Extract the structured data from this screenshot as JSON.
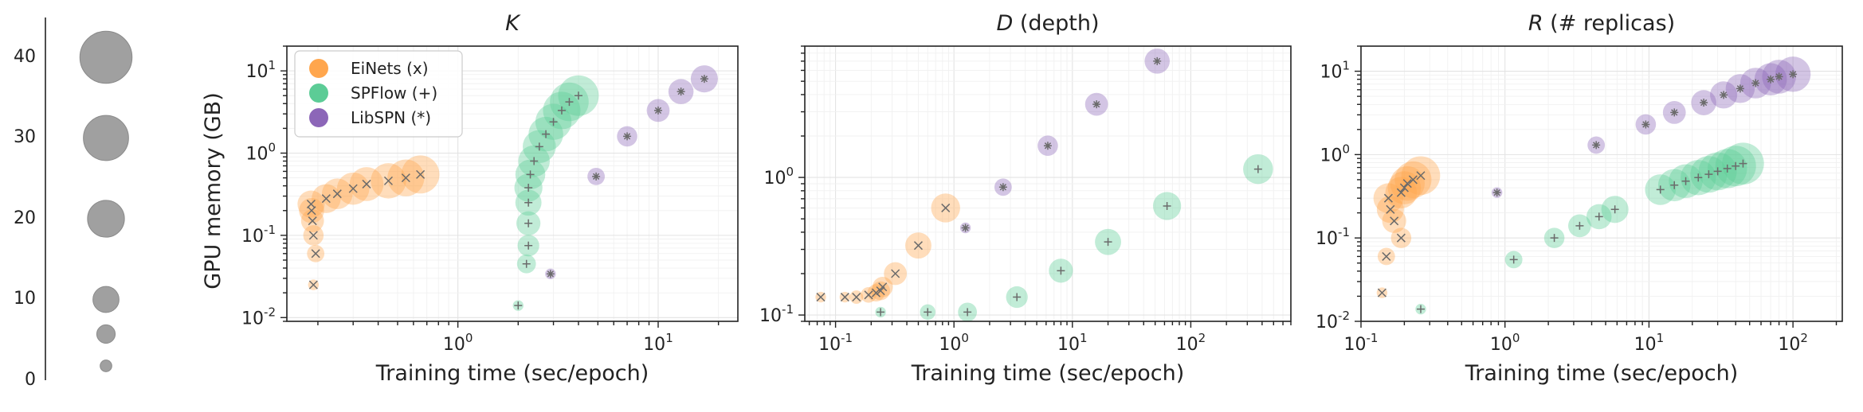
{
  "colors": {
    "EiNets": "#ffa64d",
    "SPFlow": "#5ccc96",
    "LibSPN": "#8c66b8",
    "size_legend": "#a0a0a0",
    "marker": "#666666"
  },
  "size_legend": {
    "ticks": [
      "0",
      "10",
      "20",
      "30",
      "40"
    ],
    "values": [
      2,
      5,
      10,
      20,
      30,
      40
    ]
  },
  "legend": [
    {
      "name": "EiNets (x)",
      "color": "#ffa64d",
      "marker": "x"
    },
    {
      "name": "SPFlow (+)",
      "color": "#5ccc96",
      "marker": "+"
    },
    {
      "name": "LibSPN (*)",
      "color": "#8c66b8",
      "marker": "*"
    }
  ],
  "chart_data": [
    {
      "type": "scatter",
      "title_var": "K",
      "title_rest": "",
      "xlabel": "Training time (sec/epoch)",
      "ylabel": "GPU memory (GB)",
      "xscale": "log",
      "yscale": "log",
      "xlim": [
        0.14,
        25
      ],
      "ylim": [
        0.009,
        20
      ],
      "xticks": [
        {
          "v": 1,
          "b": "10",
          "e": "0"
        },
        {
          "v": 10,
          "b": "10",
          "e": "1"
        }
      ],
      "yticks": [
        {
          "v": 0.01,
          "b": "10",
          "e": "-2"
        },
        {
          "v": 0.1,
          "b": "10",
          "e": "-1"
        },
        {
          "v": 1,
          "b": "10",
          "e": "0"
        },
        {
          "v": 10,
          "b": "10",
          "e": "1"
        }
      ],
      "grid": true,
      "legend_position": "top-left",
      "series": [
        {
          "name": "EiNets (x)",
          "marker": "x",
          "points": [
            {
              "x": 0.19,
              "y": 0.025,
              "s": 1
            },
            {
              "x": 0.195,
              "y": 0.06,
              "s": 4
            },
            {
              "x": 0.19,
              "y": 0.1,
              "s": 6
            },
            {
              "x": 0.188,
              "y": 0.15,
              "s": 8
            },
            {
              "x": 0.186,
              "y": 0.2,
              "s": 10
            },
            {
              "x": 0.185,
              "y": 0.24,
              "s": 12
            },
            {
              "x": 0.22,
              "y": 0.28,
              "s": 14
            },
            {
              "x": 0.25,
              "y": 0.32,
              "s": 16
            },
            {
              "x": 0.3,
              "y": 0.37,
              "s": 18
            },
            {
              "x": 0.35,
              "y": 0.42,
              "s": 20
            },
            {
              "x": 0.45,
              "y": 0.46,
              "s": 22
            },
            {
              "x": 0.55,
              "y": 0.5,
              "s": 24
            },
            {
              "x": 0.65,
              "y": 0.55,
              "s": 26
            }
          ]
        },
        {
          "name": "SPFlow (+)",
          "marker": "+",
          "points": [
            {
              "x": 2.0,
              "y": 0.014,
              "s": 1
            },
            {
              "x": 2.2,
              "y": 0.045,
              "s": 5
            },
            {
              "x": 2.25,
              "y": 0.075,
              "s": 7
            },
            {
              "x": 2.25,
              "y": 0.14,
              "s": 9
            },
            {
              "x": 2.25,
              "y": 0.25,
              "s": 11
            },
            {
              "x": 2.25,
              "y": 0.38,
              "s": 13
            },
            {
              "x": 2.3,
              "y": 0.55,
              "s": 15
            },
            {
              "x": 2.4,
              "y": 0.8,
              "s": 17
            },
            {
              "x": 2.55,
              "y": 1.2,
              "s": 19
            },
            {
              "x": 2.75,
              "y": 1.7,
              "s": 21
            },
            {
              "x": 3.0,
              "y": 2.4,
              "s": 23
            },
            {
              "x": 3.3,
              "y": 3.3,
              "s": 25
            },
            {
              "x": 3.6,
              "y": 4.2,
              "s": 27
            },
            {
              "x": 4.0,
              "y": 5.0,
              "s": 30
            }
          ]
        },
        {
          "name": "LibSPN (*)",
          "marker": "*",
          "points": [
            {
              "x": 2.9,
              "y": 0.034,
              "s": 1
            },
            {
              "x": 4.9,
              "y": 0.52,
              "s": 4
            },
            {
              "x": 7.0,
              "y": 1.6,
              "s": 6
            },
            {
              "x": 10.0,
              "y": 3.3,
              "s": 8
            },
            {
              "x": 13.0,
              "y": 5.6,
              "s": 10
            },
            {
              "x": 17.0,
              "y": 8.0,
              "s": 12
            }
          ]
        }
      ]
    },
    {
      "type": "scatter",
      "title_var": "D",
      "title_rest": " (depth)",
      "xlabel": "Training time (sec/epoch)",
      "ylabel": "",
      "xscale": "log",
      "yscale": "log",
      "xlim": [
        0.055,
        700
      ],
      "ylim": [
        0.09,
        9.0
      ],
      "xticks": [
        {
          "v": 0.1,
          "b": "10",
          "e": "-1"
        },
        {
          "v": 1,
          "b": "10",
          "e": "0"
        },
        {
          "v": 10,
          "b": "10",
          "e": "1"
        },
        {
          "v": 100,
          "b": "10",
          "e": "2"
        }
      ],
      "yticks": [
        {
          "v": 0.1,
          "b": "10",
          "e": "-1"
        },
        {
          "v": 1,
          "b": "10",
          "e": "0"
        }
      ],
      "grid": true,
      "series": [
        {
          "name": "EiNets (x)",
          "marker": "x",
          "points": [
            {
              "x": 0.075,
              "y": 0.135,
              "s": 1
            },
            {
              "x": 0.12,
              "y": 0.135,
              "s": 1
            },
            {
              "x": 0.15,
              "y": 0.135,
              "s": 2
            },
            {
              "x": 0.19,
              "y": 0.14,
              "s": 3
            },
            {
              "x": 0.22,
              "y": 0.145,
              "s": 4
            },
            {
              "x": 0.24,
              "y": 0.15,
              "s": 5
            },
            {
              "x": 0.25,
              "y": 0.16,
              "s": 6
            },
            {
              "x": 0.32,
              "y": 0.2,
              "s": 8
            },
            {
              "x": 0.5,
              "y": 0.32,
              "s": 11
            },
            {
              "x": 0.85,
              "y": 0.6,
              "s": 14
            }
          ]
        },
        {
          "name": "SPFlow (+)",
          "marker": "+",
          "points": [
            {
              "x": 0.24,
              "y": 0.105,
              "s": 1
            },
            {
              "x": 0.6,
              "y": 0.105,
              "s": 3
            },
            {
              "x": 1.3,
              "y": 0.105,
              "s": 5
            },
            {
              "x": 3.4,
              "y": 0.135,
              "s": 7
            },
            {
              "x": 8.0,
              "y": 0.21,
              "s": 9
            },
            {
              "x": 20.0,
              "y": 0.34,
              "s": 11
            },
            {
              "x": 63.0,
              "y": 0.62,
              "s": 13
            },
            {
              "x": 370.0,
              "y": 1.15,
              "s": 15
            }
          ]
        },
        {
          "name": "LibSPN (*)",
          "marker": "*",
          "points": [
            {
              "x": 1.25,
              "y": 0.43,
              "s": 1
            },
            {
              "x": 2.6,
              "y": 0.85,
              "s": 4
            },
            {
              "x": 6.2,
              "y": 1.7,
              "s": 6
            },
            {
              "x": 16.0,
              "y": 3.4,
              "s": 8
            },
            {
              "x": 52.0,
              "y": 7.0,
              "s": 10
            }
          ]
        }
      ]
    },
    {
      "type": "scatter",
      "title_var": "R",
      "title_rest": " (# replicas)",
      "xlabel": "Training time (sec/epoch)",
      "ylabel": "",
      "xscale": "log",
      "yscale": "log",
      "xlim": [
        0.1,
        220
      ],
      "ylim": [
        0.01,
        20
      ],
      "xticks": [
        {
          "v": 0.1,
          "b": "10",
          "e": "-1"
        },
        {
          "v": 1,
          "b": "10",
          "e": "0"
        },
        {
          "v": 10,
          "b": "10",
          "e": "1"
        },
        {
          "v": 100,
          "b": "10",
          "e": "2"
        }
      ],
      "yticks": [
        {
          "v": 0.01,
          "b": "10",
          "e": "-2"
        },
        {
          "v": 0.1,
          "b": "10",
          "e": "-1"
        },
        {
          "v": 1,
          "b": "10",
          "e": "0"
        },
        {
          "v": 10,
          "b": "10",
          "e": "1"
        }
      ],
      "grid": true,
      "series": [
        {
          "name": "EiNets (x)",
          "marker": "x",
          "points": [
            {
              "x": 0.14,
              "y": 0.022,
              "s": 1
            },
            {
              "x": 0.15,
              "y": 0.06,
              "s": 4
            },
            {
              "x": 0.19,
              "y": 0.1,
              "s": 6
            },
            {
              "x": 0.17,
              "y": 0.16,
              "s": 9
            },
            {
              "x": 0.16,
              "y": 0.22,
              "s": 12
            },
            {
              "x": 0.155,
              "y": 0.3,
              "s": 15
            },
            {
              "x": 0.19,
              "y": 0.35,
              "s": 17
            },
            {
              "x": 0.2,
              "y": 0.4,
              "s": 19
            },
            {
              "x": 0.21,
              "y": 0.45,
              "s": 21
            },
            {
              "x": 0.23,
              "y": 0.5,
              "s": 24
            },
            {
              "x": 0.26,
              "y": 0.56,
              "s": 27
            }
          ]
        },
        {
          "name": "SPFlow (+)",
          "marker": "+",
          "points": [
            {
              "x": 0.26,
              "y": 0.014,
              "s": 1
            },
            {
              "x": 1.15,
              "y": 0.055,
              "s": 4
            },
            {
              "x": 2.2,
              "y": 0.1,
              "s": 6
            },
            {
              "x": 3.3,
              "y": 0.14,
              "s": 8
            },
            {
              "x": 4.5,
              "y": 0.18,
              "s": 10
            },
            {
              "x": 5.8,
              "y": 0.22,
              "s": 12
            },
            {
              "x": 12.0,
              "y": 0.38,
              "s": 16
            },
            {
              "x": 15.0,
              "y": 0.43,
              "s": 18
            },
            {
              "x": 18.0,
              "y": 0.48,
              "s": 20
            },
            {
              "x": 22.0,
              "y": 0.53,
              "s": 22
            },
            {
              "x": 26.0,
              "y": 0.58,
              "s": 24
            },
            {
              "x": 30.0,
              "y": 0.63,
              "s": 26
            },
            {
              "x": 35.0,
              "y": 0.68,
              "s": 28
            },
            {
              "x": 40.0,
              "y": 0.73,
              "s": 30
            },
            {
              "x": 45.0,
              "y": 0.78,
              "s": 32
            }
          ]
        },
        {
          "name": "LibSPN (*)",
          "marker": "*",
          "points": [
            {
              "x": 0.88,
              "y": 0.35,
              "s": 1
            },
            {
              "x": 4.3,
              "y": 1.3,
              "s": 4
            },
            {
              "x": 9.5,
              "y": 2.3,
              "s": 6
            },
            {
              "x": 15.0,
              "y": 3.2,
              "s": 8
            },
            {
              "x": 24.0,
              "y": 4.2,
              "s": 10
            },
            {
              "x": 33.0,
              "y": 5.2,
              "s": 12
            },
            {
              "x": 43.0,
              "y": 6.2,
              "s": 14
            },
            {
              "x": 55.0,
              "y": 7.2,
              "s": 16
            },
            {
              "x": 70.0,
              "y": 8.0,
              "s": 18
            },
            {
              "x": 80.0,
              "y": 8.6,
              "s": 20
            },
            {
              "x": 100.0,
              "y": 9.2,
              "s": 22
            }
          ]
        }
      ]
    }
  ]
}
